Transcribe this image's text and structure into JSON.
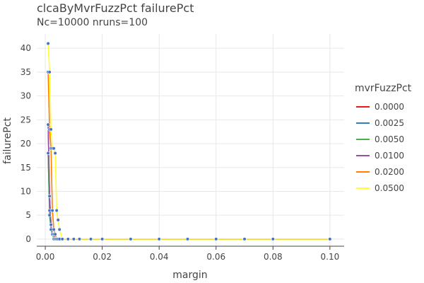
{
  "chart_data": {
    "type": "line",
    "title": "clcaByMvrFuzzPct failurePct",
    "subtitle": "Nc=10000 nruns=100",
    "xlabel": "margin",
    "ylabel": "failurePct",
    "xlim": [
      -0.003,
      0.105
    ],
    "ylim": [
      -1.5,
      43
    ],
    "xticks": [
      0,
      0.02,
      0.04,
      0.06,
      0.08,
      0.1
    ],
    "xtick_labels": [
      "0.00",
      "0.02",
      "0.04",
      "0.06",
      "0.08",
      "0.10"
    ],
    "yticks": [
      0,
      5,
      10,
      15,
      20,
      25,
      30,
      35,
      40
    ],
    "yticks_labels": [
      "0",
      "5",
      "10",
      "15",
      "20",
      "25",
      "30",
      "35",
      "40"
    ],
    "grid": true,
    "legend_title": "mvrFuzzPct",
    "legend_position": "right",
    "marker_color": "#4472c4",
    "x": [
      0.001,
      0.0015,
      0.002,
      0.0025,
      0.003,
      0.0035,
      0.004,
      0.0045,
      0.005,
      0.006,
      0.008,
      0.01,
      0.012,
      0.016,
      0.02,
      0.03,
      0.04,
      0.05,
      0.06,
      0.07,
      0.08,
      0.1
    ],
    "series": [
      {
        "name": "0.0000",
        "color": "#e41a1c",
        "values": [
          24,
          9,
          3,
          1,
          1,
          0,
          0,
          0,
          0,
          0,
          0,
          0,
          0,
          0,
          0,
          0,
          0,
          0,
          0,
          0,
          0,
          0
        ]
      },
      {
        "name": "0.0025",
        "color": "#377eb8",
        "values": [
          18,
          5,
          2,
          1,
          0,
          0,
          0,
          0,
          0,
          0,
          0,
          0,
          0,
          0,
          0,
          0,
          0,
          0,
          0,
          0,
          0,
          0
        ]
      },
      {
        "name": "0.0050",
        "color": "#4daf4a",
        "values": [
          18,
          6,
          2,
          1,
          0,
          0,
          0,
          0,
          0,
          0,
          0,
          0,
          0,
          0,
          0,
          0,
          0,
          0,
          0,
          0,
          0,
          0
        ]
      },
      {
        "name": "0.0100",
        "color": "#984ea3",
        "values": [
          24,
          9,
          3,
          1,
          1,
          0,
          0,
          0,
          0,
          0,
          0,
          0,
          0,
          0,
          0,
          0,
          0,
          0,
          0,
          0,
          0,
          0
        ]
      },
      {
        "name": "0.0200",
        "color": "#ff7f00",
        "values": [
          35,
          23,
          19,
          6,
          2,
          1,
          0,
          0,
          0,
          0,
          0,
          0,
          0,
          0,
          0,
          0,
          0,
          0,
          0,
          0,
          0,
          0
        ]
      },
      {
        "name": "0.0500",
        "color": "#ffff33",
        "values": [
          41,
          35,
          23,
          19,
          19,
          18,
          6,
          4,
          2,
          0,
          0,
          0,
          0,
          0,
          0,
          0,
          0,
          0,
          0,
          0,
          0,
          0
        ]
      }
    ]
  }
}
